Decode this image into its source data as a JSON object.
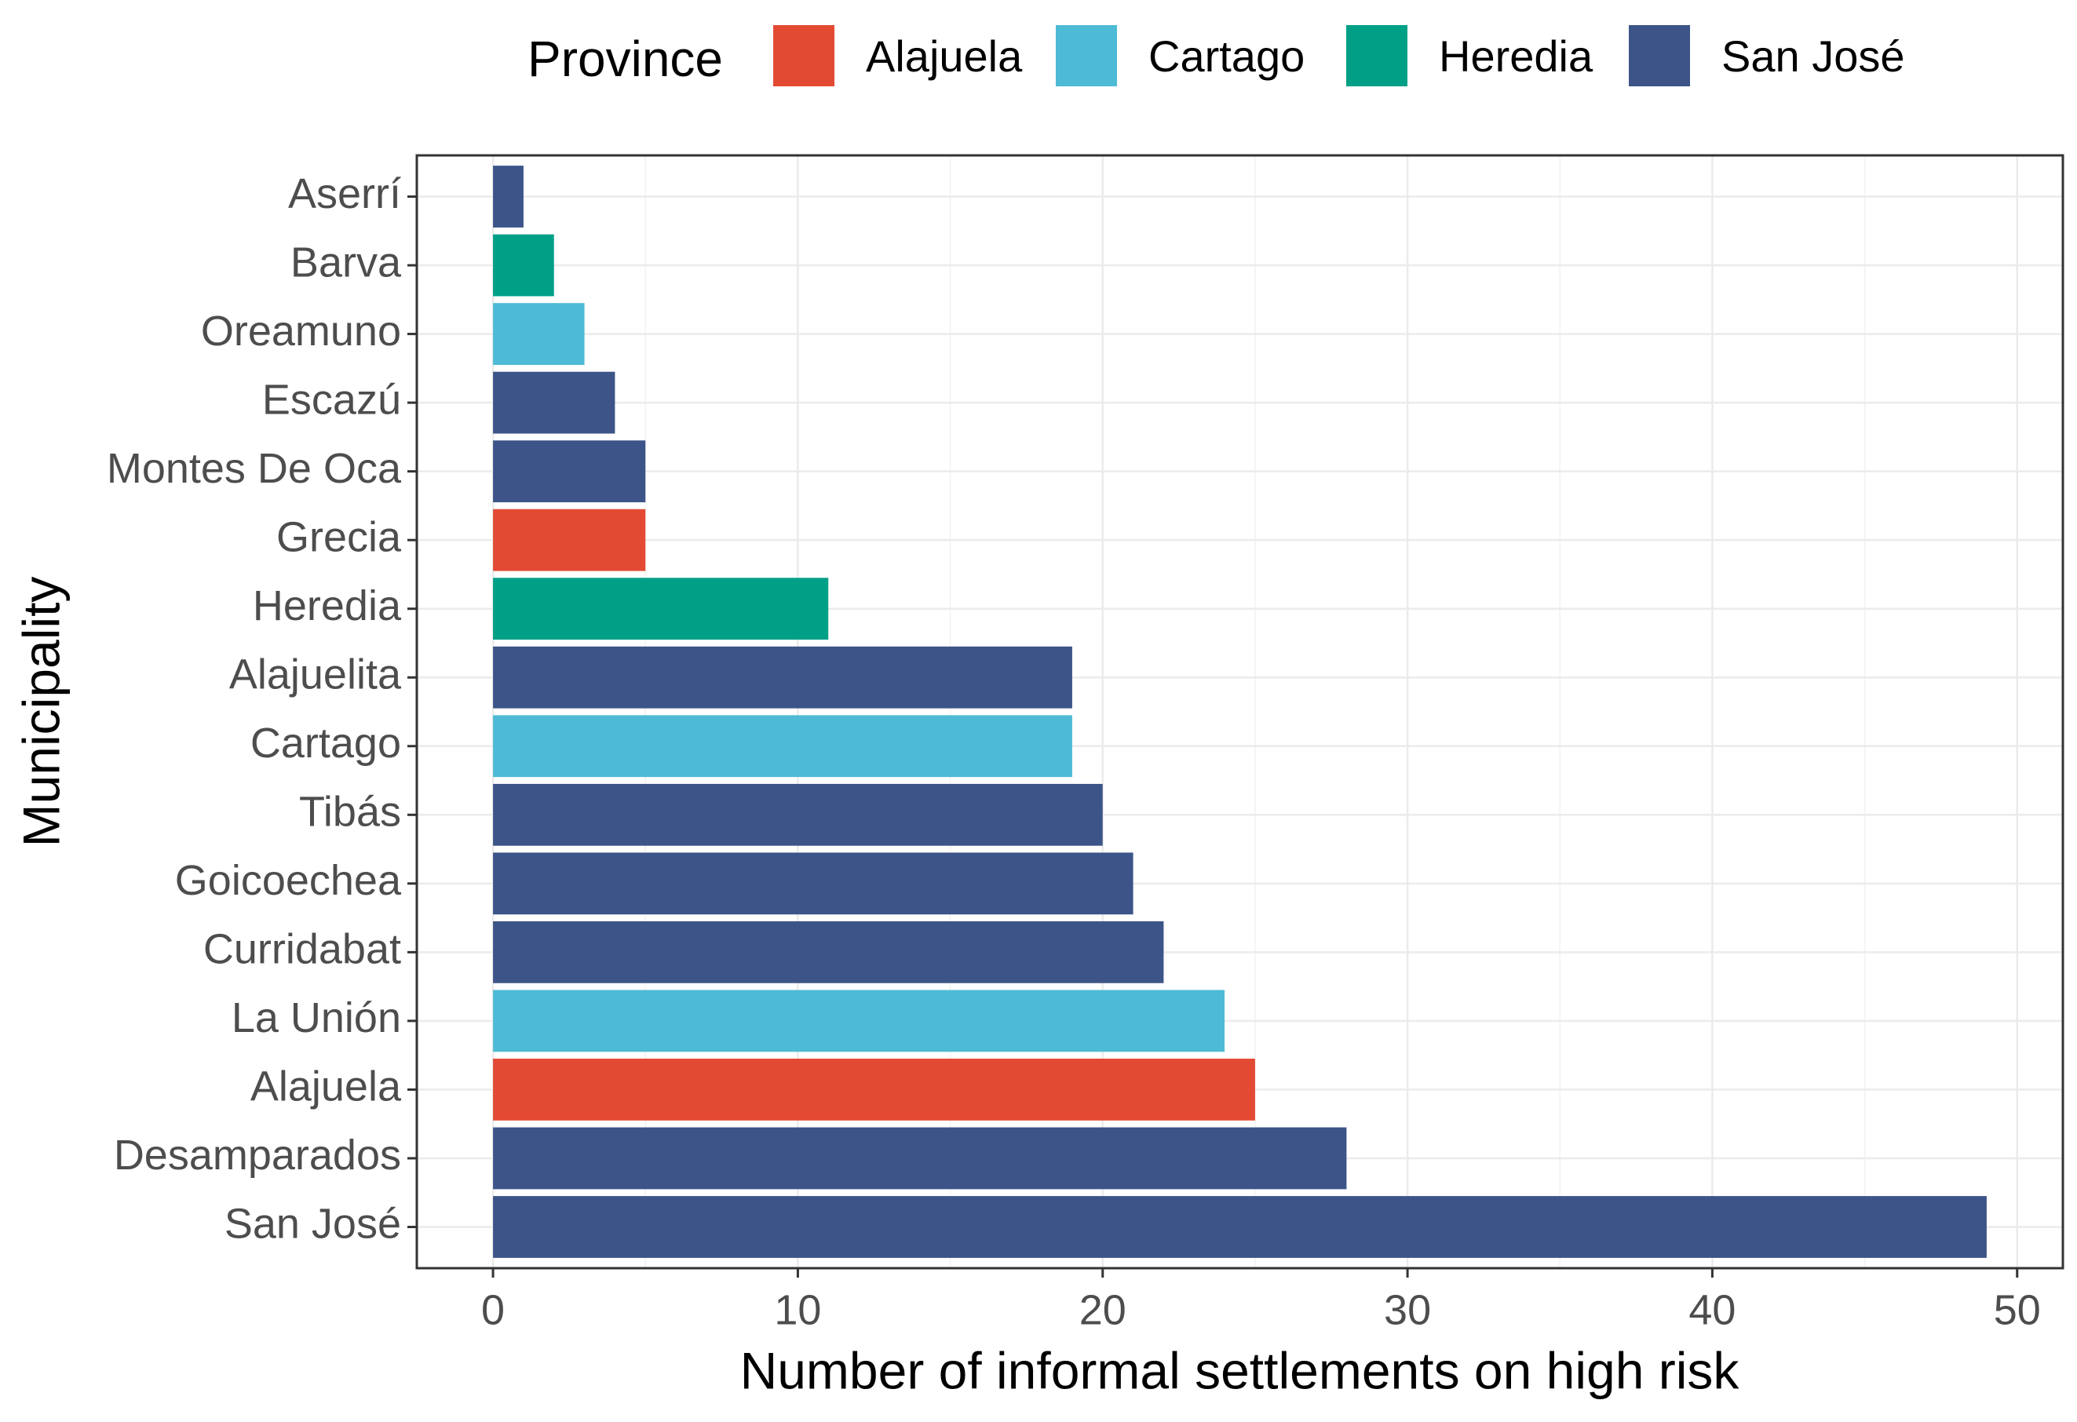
{
  "chart_data": {
    "type": "bar",
    "orientation": "horizontal",
    "xlabel": "Number of informal settlements on high risk",
    "ylabel": "Municipality",
    "xlim": [
      -2.5,
      51.5
    ],
    "xticks": [
      0,
      10,
      20,
      30,
      40,
      50
    ],
    "xtick_labels": [
      "0",
      "10",
      "20",
      "30",
      "40",
      "50"
    ],
    "grid": true,
    "legend": {
      "title": "Province",
      "position": "top",
      "entries": [
        {
          "label": "Alajuela",
          "color": "#e34a33"
        },
        {
          "label": "Cartago",
          "color": "#4dbbd5"
        },
        {
          "label": "Heredia",
          "color": "#00a087"
        },
        {
          "label": "San José",
          "color": "#3c5488"
        }
      ]
    },
    "bars": [
      {
        "municipality": "Aserrí",
        "province": "San José",
        "value": 1
      },
      {
        "municipality": "Barva",
        "province": "Heredia",
        "value": 2
      },
      {
        "municipality": "Oreamuno",
        "province": "Cartago",
        "value": 3
      },
      {
        "municipality": "Escazú",
        "province": "San José",
        "value": 4
      },
      {
        "municipality": "Montes De Oca",
        "province": "San José",
        "value": 5
      },
      {
        "municipality": "Grecia",
        "province": "Alajuela",
        "value": 5
      },
      {
        "municipality": "Heredia",
        "province": "Heredia",
        "value": 11
      },
      {
        "municipality": "Alajuelita",
        "province": "San José",
        "value": 19
      },
      {
        "municipality": "Cartago",
        "province": "Cartago",
        "value": 19
      },
      {
        "municipality": "Tibás",
        "province": "San José",
        "value": 20
      },
      {
        "municipality": "Goicoechea",
        "province": "San José",
        "value": 21
      },
      {
        "municipality": "Curridabat",
        "province": "San José",
        "value": 22
      },
      {
        "municipality": "La Unión",
        "province": "Cartago",
        "value": 24
      },
      {
        "municipality": "Alajuela",
        "province": "Alajuela",
        "value": 25
      },
      {
        "municipality": "Desamparados",
        "province": "San José",
        "value": 28
      },
      {
        "municipality": "San José",
        "province": "San José",
        "value": 49
      }
    ]
  }
}
